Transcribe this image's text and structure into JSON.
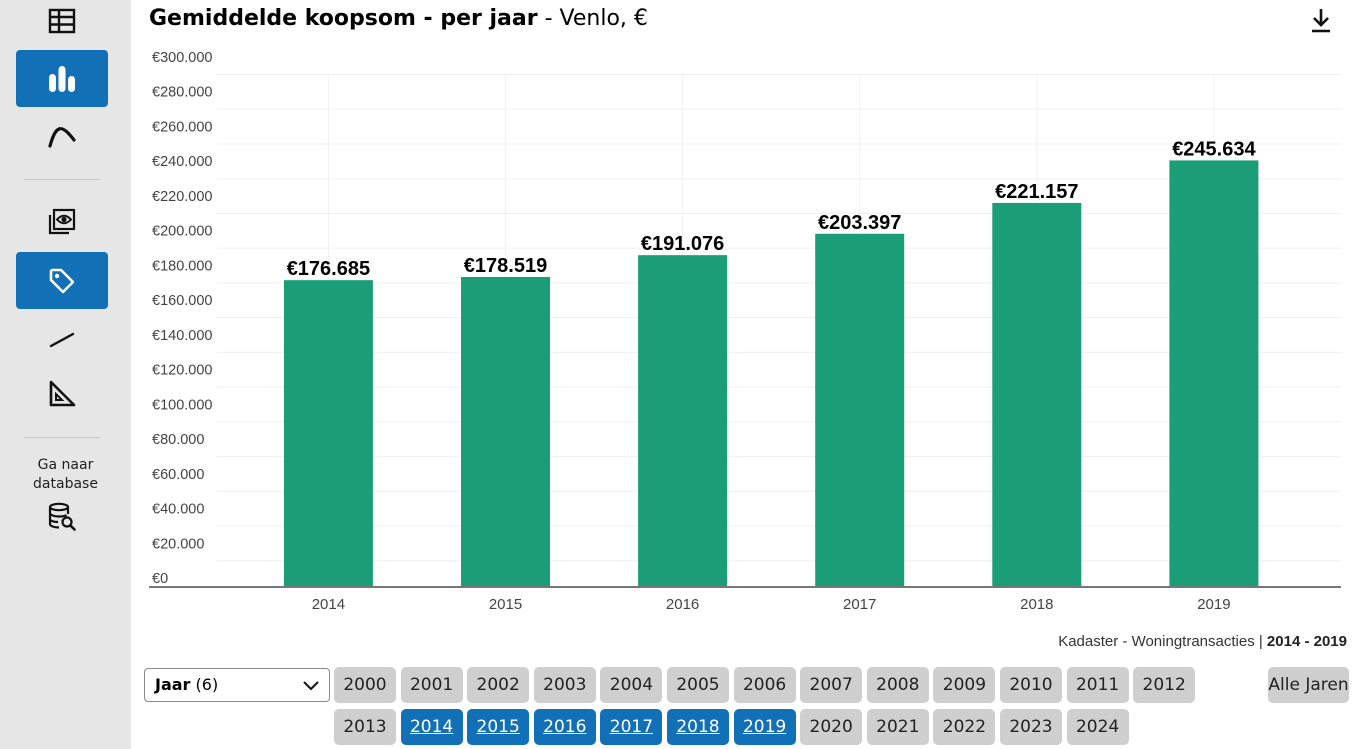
{
  "title": {
    "main": "Gemiddelde koopsom - per jaar",
    "sub": " - Venlo, €"
  },
  "sidebar": {
    "db_label_line1": "Ga naar",
    "db_label_line2": "database"
  },
  "source": {
    "text": "Kadaster - Woningtransacties | ",
    "range": "2014 - 2019"
  },
  "select": {
    "label": "Jaar",
    "count": " (6)"
  },
  "years": [
    "2000",
    "2001",
    "2002",
    "2003",
    "2004",
    "2005",
    "2006",
    "2007",
    "2008",
    "2009",
    "2010",
    "2011",
    "2012",
    "2013",
    "2014",
    "2015",
    "2016",
    "2017",
    "2018",
    "2019",
    "2020",
    "2021",
    "2022",
    "2023",
    "2024"
  ],
  "selected_years": [
    "2014",
    "2015",
    "2016",
    "2017",
    "2018",
    "2019"
  ],
  "all_years_label": "Alle Jaren",
  "colors": {
    "bar": "#1b9e77",
    "accent": "#1170b6",
    "button": "#cfcfcf"
  },
  "chart_data": {
    "type": "bar",
    "categories": [
      "2014",
      "2015",
      "2016",
      "2017",
      "2018",
      "2019"
    ],
    "values": [
      176685,
      178519,
      191076,
      203397,
      221157,
      245634
    ],
    "data_labels": [
      "€176.685",
      "€178.519",
      "€191.076",
      "€203.397",
      "€221.157",
      "€245.634"
    ],
    "ylim": [
      0,
      300000
    ],
    "yticks": [
      0,
      20000,
      40000,
      60000,
      80000,
      100000,
      120000,
      140000,
      160000,
      180000,
      200000,
      220000,
      240000,
      260000,
      280000,
      300000
    ],
    "ytick_labels": [
      "€0",
      "€20.000",
      "€40.000",
      "€60.000",
      "€80.000",
      "€100.000",
      "€120.000",
      "€140.000",
      "€160.000",
      "€180.000",
      "€200.000",
      "€220.000",
      "€240.000",
      "€260.000",
      "€280.000",
      "€300.000"
    ],
    "grid": true
  }
}
